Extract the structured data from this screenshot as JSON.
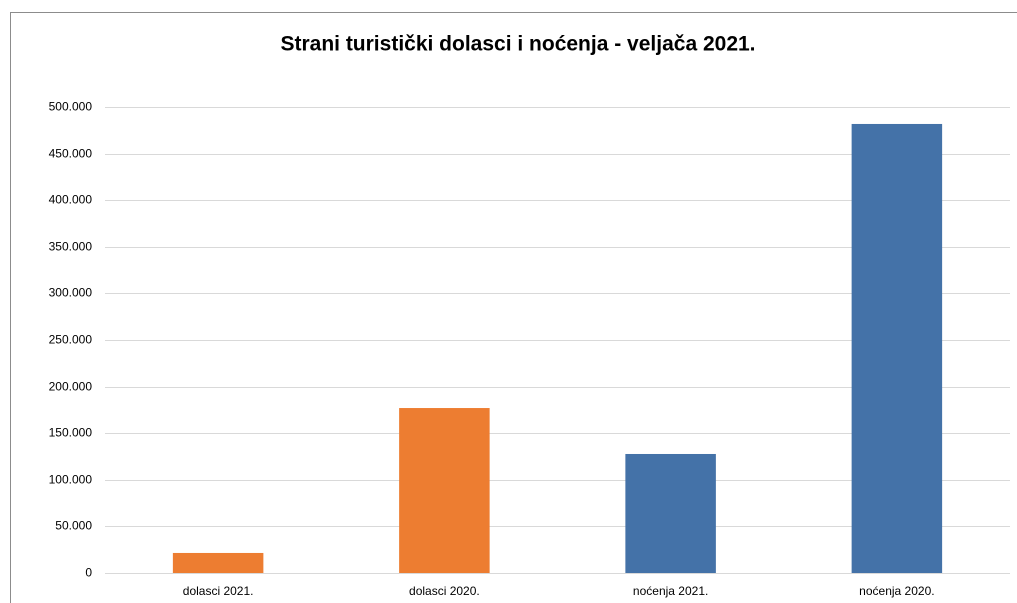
{
  "chart_data": {
    "type": "bar",
    "title": "Strani turistički dolasci i noćenja - veljača 2021.",
    "categories": [
      "dolasci 2021.",
      "dolasci 2020.",
      "noćenja 2021.",
      "noćenja 2020."
    ],
    "values": [
      21500,
      177000,
      127700,
      481800
    ],
    "colors": [
      "#ed7d31",
      "#ed7d31",
      "#4472a8",
      "#4472a8"
    ],
    "ylim": [
      0,
      500000
    ],
    "yticks": [
      0,
      {
        "value": 50000,
        "label": "50.000"
      },
      {
        "value": 100000,
        "label": "100.000"
      },
      {
        "value": 150000,
        "label": "150.000"
      },
      {
        "value": 200000,
        "label": "200.000"
      },
      {
        "value": 250000,
        "label": "250.000"
      },
      {
        "value": 300000,
        "label": "300.000"
      },
      {
        "value": 350000,
        "label": "350.000"
      },
      {
        "value": 400000,
        "label": "400.000"
      },
      {
        "value": 450000,
        "label": "450.000"
      },
      {
        "value": 500000,
        "label": "500.000"
      }
    ],
    "grid": true
  }
}
